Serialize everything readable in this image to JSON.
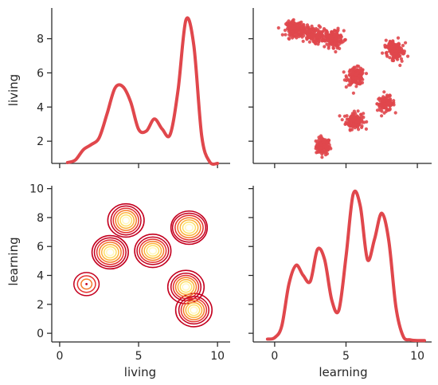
{
  "chart_data": {
    "type": "pairgrid",
    "variables": [
      "living",
      "learning"
    ],
    "accent_color": "#e0474c",
    "contour_colormap": [
      "#c4001f",
      "#e4312e",
      "#f47a2a",
      "#fbb13a",
      "#fde06a",
      "#fff7c0"
    ],
    "axes": {
      "living": {
        "ticks": [
          2,
          4,
          6,
          8
        ],
        "range": [
          0.7,
          9.8
        ],
        "label": "living"
      },
      "learning": {
        "ticks": [
          0,
          2,
          4,
          6,
          8,
          10
        ],
        "range": [
          -0.6,
          10.2
        ],
        "label": "learning"
      },
      "living_x": {
        "ticks": [
          0,
          5,
          10
        ],
        "range": [
          -0.5,
          10.8
        ],
        "label": "living"
      },
      "learning_x": {
        "ticks": [
          0,
          5,
          10
        ],
        "range": [
          -1.5,
          11.0
        ],
        "label": "learning"
      }
    },
    "clusters": [
      {
        "living": 1.7,
        "learning": 3.4,
        "n": 120,
        "sx": 0.35,
        "sy": 0.25,
        "rot": 0
      },
      {
        "living": 3.2,
        "learning": 5.6,
        "n": 140,
        "sx": 0.35,
        "sy": 0.3,
        "rot": 0
      },
      {
        "living": 4.2,
        "learning": 7.8,
        "n": 120,
        "sx": 0.3,
        "sy": 0.3,
        "rot": 0
      },
      {
        "living": 5.8,
        "learning": 5.7,
        "n": 150,
        "sx": 0.35,
        "sy": 0.3,
        "rot": 0
      },
      {
        "living": 7.3,
        "learning": 8.4,
        "n": 170,
        "sx": 0.45,
        "sy": 0.3,
        "rot": 0.35
      },
      {
        "living": 8.3,
        "learning": 2.5,
        "n": 160,
        "sx": 0.35,
        "sy": 0.55,
        "rot": -0.35
      },
      {
        "living": 8.0,
        "learning": 4.1,
        "n": 160,
        "sx": 0.35,
        "sy": 0.35,
        "rot": 0.3
      },
      {
        "living": 8.6,
        "learning": 1.4,
        "n": 120,
        "sx": 0.3,
        "sy": 0.3,
        "rot": 0
      }
    ],
    "kde_living": {
      "x": [
        0.5,
        1.0,
        1.5,
        2.0,
        2.5,
        3.0,
        3.5,
        4.0,
        4.5,
        5.0,
        5.5,
        6.0,
        6.5,
        7.0,
        7.5,
        8.0,
        8.5,
        9.0,
        9.5,
        10.0
      ],
      "y": [
        0.75,
        0.9,
        1.5,
        1.8,
        2.2,
        3.6,
        5.1,
        5.2,
        4.3,
        2.7,
        2.6,
        3.3,
        2.7,
        2.4,
        5.0,
        9.1,
        7.6,
        2.3,
        0.8,
        0.7
      ]
    },
    "kde_learning": {
      "x": [
        -0.5,
        0.0,
        0.5,
        1.0,
        1.5,
        2.0,
        2.5,
        3.0,
        3.5,
        4.0,
        4.5,
        5.0,
        5.5,
        6.0,
        6.5,
        7.0,
        7.5,
        8.0,
        8.5,
        9.0,
        9.5,
        10.0,
        10.5
      ],
      "y": [
        -0.4,
        -0.3,
        0.5,
        3.4,
        4.7,
        4.0,
        3.6,
        5.8,
        5.1,
        2.3,
        1.6,
        5.3,
        9.6,
        8.8,
        5.1,
        6.5,
        8.3,
        6.4,
        1.8,
        -0.2,
        -0.45,
        -0.5,
        -0.5
      ]
    }
  }
}
